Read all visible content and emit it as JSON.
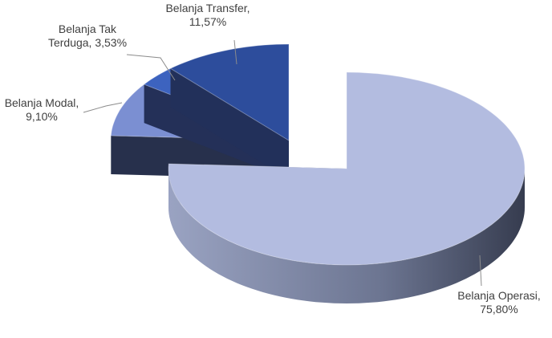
{
  "chart_data": {
    "type": "pie3d",
    "values": [
      75.8,
      9.1,
      3.53,
      11.57
    ],
    "value_labels": [
      "Belanja Operasi, 75,80%",
      "Belanja Modal, 9,10%",
      "Belanja Tak Terduga, 3,53%",
      "Belanja Transfer, 11,57%"
    ],
    "colors": [
      "#b3bce0",
      "#7b8fd2",
      "#3d63bf",
      "#2d4d9c"
    ]
  }
}
